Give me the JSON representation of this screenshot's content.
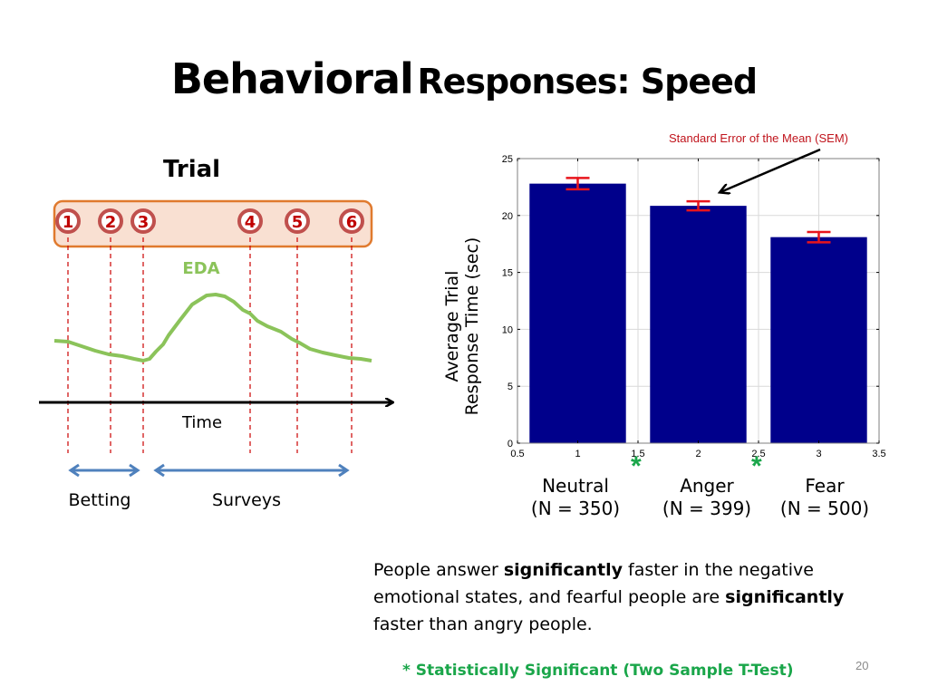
{
  "slide": {
    "title_part1": "Behavioral",
    "title_part2": "Responses: Speed",
    "page_number": "20"
  },
  "diagram": {
    "trial_label": "Trial",
    "steps": [
      "1",
      "2",
      "3",
      "4",
      "5",
      "6"
    ],
    "signal_label": "EDA",
    "axis_label": "Time",
    "phases": [
      {
        "label": "Betting",
        "from_step": "1",
        "to_step": "3"
      },
      {
        "label": "Surveys",
        "from_step": "3",
        "to_step": "6"
      }
    ],
    "colors": {
      "box_border": "#e07a2e",
      "box_fill": "#f9e0d2",
      "step_circle": "#c0504d",
      "step_text": "#c00000",
      "eda_line": "#8bc35a",
      "phase_arrow": "#4f81bd",
      "guide_line": "#cc0000"
    }
  },
  "chart_data": {
    "type": "bar",
    "title": "",
    "xlabel": "",
    "ylabel": "Average Trial Response Time (sec)",
    "ylabel_lines": [
      "Average Trial",
      "Response Time (sec)"
    ],
    "x": [
      1,
      2,
      3
    ],
    "categories": [
      "Neutral",
      "Anger",
      "Fear"
    ],
    "category_n": [
      "(N = 350)",
      "(N = 399)",
      "(N = 500)"
    ],
    "values": [
      22.8,
      20.85,
      18.1
    ],
    "error_sem": [
      0.5,
      0.4,
      0.45
    ],
    "xlim": [
      0.5,
      3.5
    ],
    "ylim": [
      0,
      25
    ],
    "xticks": [
      "0.5",
      "1",
      "1.5",
      "2",
      "2.5",
      "3",
      "3.5"
    ],
    "xtick_values": [
      0.5,
      1,
      1.5,
      2,
      2.5,
      3,
      3.5
    ],
    "yticks": [
      "0",
      "5",
      "10",
      "15",
      "20",
      "25"
    ],
    "ytick_values": [
      0,
      5,
      10,
      15,
      20,
      25
    ],
    "grid": true,
    "bar_color": "#00008b",
    "error_color": "#e8141c",
    "annotation": "Standard Error of the Mean (SEM)",
    "significance_markers": [
      {
        "between": [
          "Neutral",
          "Anger"
        ],
        "at_x": 1.5,
        "symbol": "*"
      },
      {
        "between": [
          "Anger",
          "Fear"
        ],
        "at_x": 2.5,
        "symbol": "*"
      }
    ]
  },
  "text": {
    "summary_parts": [
      {
        "t": "People answer ",
        "b": false
      },
      {
        "t": "significantly",
        "b": true
      },
      {
        "t": " faster in the negative emotional states, and fearful people are ",
        "b": false
      },
      {
        "t": "significantly",
        "b": true
      },
      {
        "t": " faster than angry people.",
        "b": false
      }
    ],
    "footnote": "* Statistically Significant (Two Sample T-Test)",
    "significance_color": "#1aa64a"
  }
}
